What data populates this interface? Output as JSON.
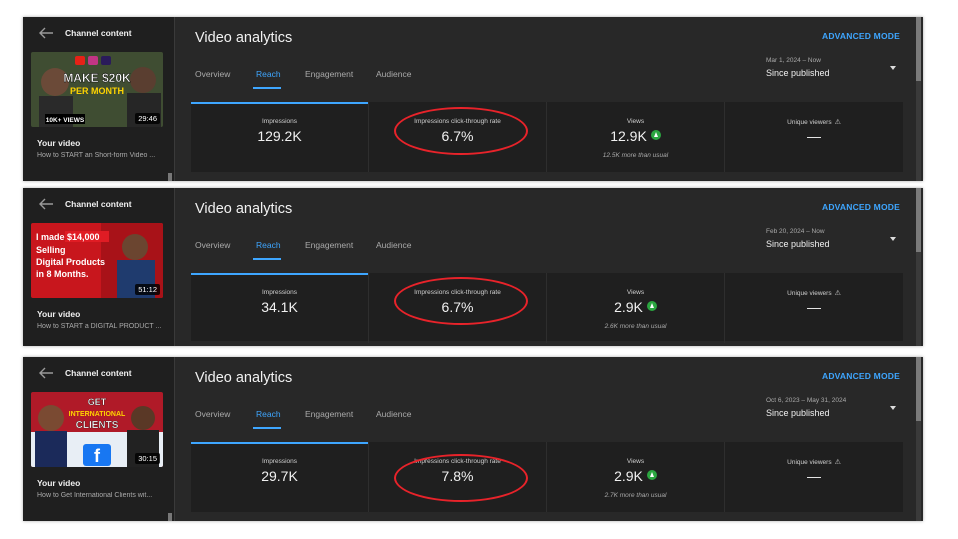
{
  "panels": [
    {
      "sidebar": {
        "channel_label": "Channel content",
        "duration": "29:46",
        "your_video": "Your video",
        "video_title": "How to START an Short-form Video ..."
      },
      "thumbnail": {
        "text1": "MAKE $20K",
        "text2": "PER MONTH",
        "text3": "10K+ VIEWS"
      },
      "header": {
        "title": "Video analytics",
        "advanced_mode": "ADVANCED MODE"
      },
      "tabs": [
        "Overview",
        "Reach",
        "Engagement",
        "Audience"
      ],
      "date": {
        "range": "Mar 1, 2024 – Now",
        "period": "Since published"
      },
      "metrics": {
        "impressions": {
          "label": "Impressions",
          "value": "129.2K"
        },
        "ctr": {
          "label": "Impressions click-through rate",
          "value": "6.7%"
        },
        "views": {
          "label": "Views",
          "value": "12.9K",
          "note": "12.5K more than usual"
        },
        "unique": {
          "label": "Unique viewers",
          "value": "—"
        }
      }
    },
    {
      "sidebar": {
        "channel_label": "Channel content",
        "duration": "51:12",
        "your_video": "Your video",
        "video_title": "How to START a DIGITAL PRODUCT ..."
      },
      "thumbnail": {
        "text1": "I made",
        "text_highlight": "$14,000",
        "text2": "Selling",
        "text3": "Digital Products",
        "text4": "in 8 Months."
      },
      "header": {
        "title": "Video analytics",
        "advanced_mode": "ADVANCED MODE"
      },
      "tabs": [
        "Overview",
        "Reach",
        "Engagement",
        "Audience"
      ],
      "date": {
        "range": "Feb 20, 2024 – Now",
        "period": "Since published"
      },
      "metrics": {
        "impressions": {
          "label": "Impressions",
          "value": "34.1K"
        },
        "ctr": {
          "label": "Impressions click-through rate",
          "value": "6.7%"
        },
        "views": {
          "label": "Views",
          "value": "2.9K",
          "note": "2.6K more than usual"
        },
        "unique": {
          "label": "Unique viewers",
          "value": "—"
        }
      }
    },
    {
      "sidebar": {
        "channel_label": "Channel content",
        "duration": "30:15",
        "your_video": "Your video",
        "video_title": "How to Get International Clients wit..."
      },
      "thumbnail": {
        "text1": "GET",
        "text2": "INTERNATIONAL",
        "text3": "CLIENTS"
      },
      "header": {
        "title": "Video analytics",
        "advanced_mode": "ADVANCED MODE"
      },
      "tabs": [
        "Overview",
        "Reach",
        "Engagement",
        "Audience"
      ],
      "date": {
        "range": "Oct 6, 2023 – May 31, 2024",
        "period": "Since published"
      },
      "metrics": {
        "impressions": {
          "label": "Impressions",
          "value": "29.7K"
        },
        "ctr": {
          "label": "Impressions click-through rate",
          "value": "7.8%"
        },
        "views": {
          "label": "Views",
          "value": "2.9K",
          "note": "2.7K more than usual"
        },
        "unique": {
          "label": "Unique viewers",
          "value": "—"
        }
      }
    }
  ],
  "colors": {
    "accent": "#3ea6ff",
    "highlight_circle": "#e8232a",
    "trend_up": "#2ba640"
  }
}
